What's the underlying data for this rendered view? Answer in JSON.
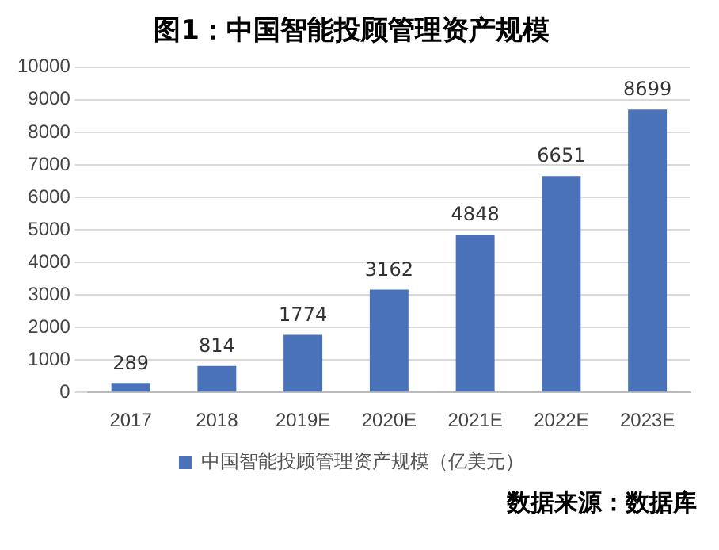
{
  "chart_data": {
    "type": "bar",
    "title": "图1：中国智能投顾管理资产规模",
    "categories": [
      "2017",
      "2018",
      "2019E",
      "2020E",
      "2021E",
      "2022E",
      "2023E"
    ],
    "series": [
      {
        "name": "中国智能投顾管理资产规模（亿美元）",
        "color": "#4a72b8",
        "values": [
          289,
          814,
          1774,
          3162,
          4848,
          6651,
          8699
        ]
      }
    ],
    "ylim": [
      0,
      10000
    ],
    "yticks": [
      0,
      1000,
      2000,
      3000,
      4000,
      5000,
      6000,
      7000,
      8000,
      9000,
      10000
    ],
    "grid": "y",
    "legend": "bottom",
    "data_labels": true,
    "annotations": [
      "数据来源：数据库"
    ]
  }
}
